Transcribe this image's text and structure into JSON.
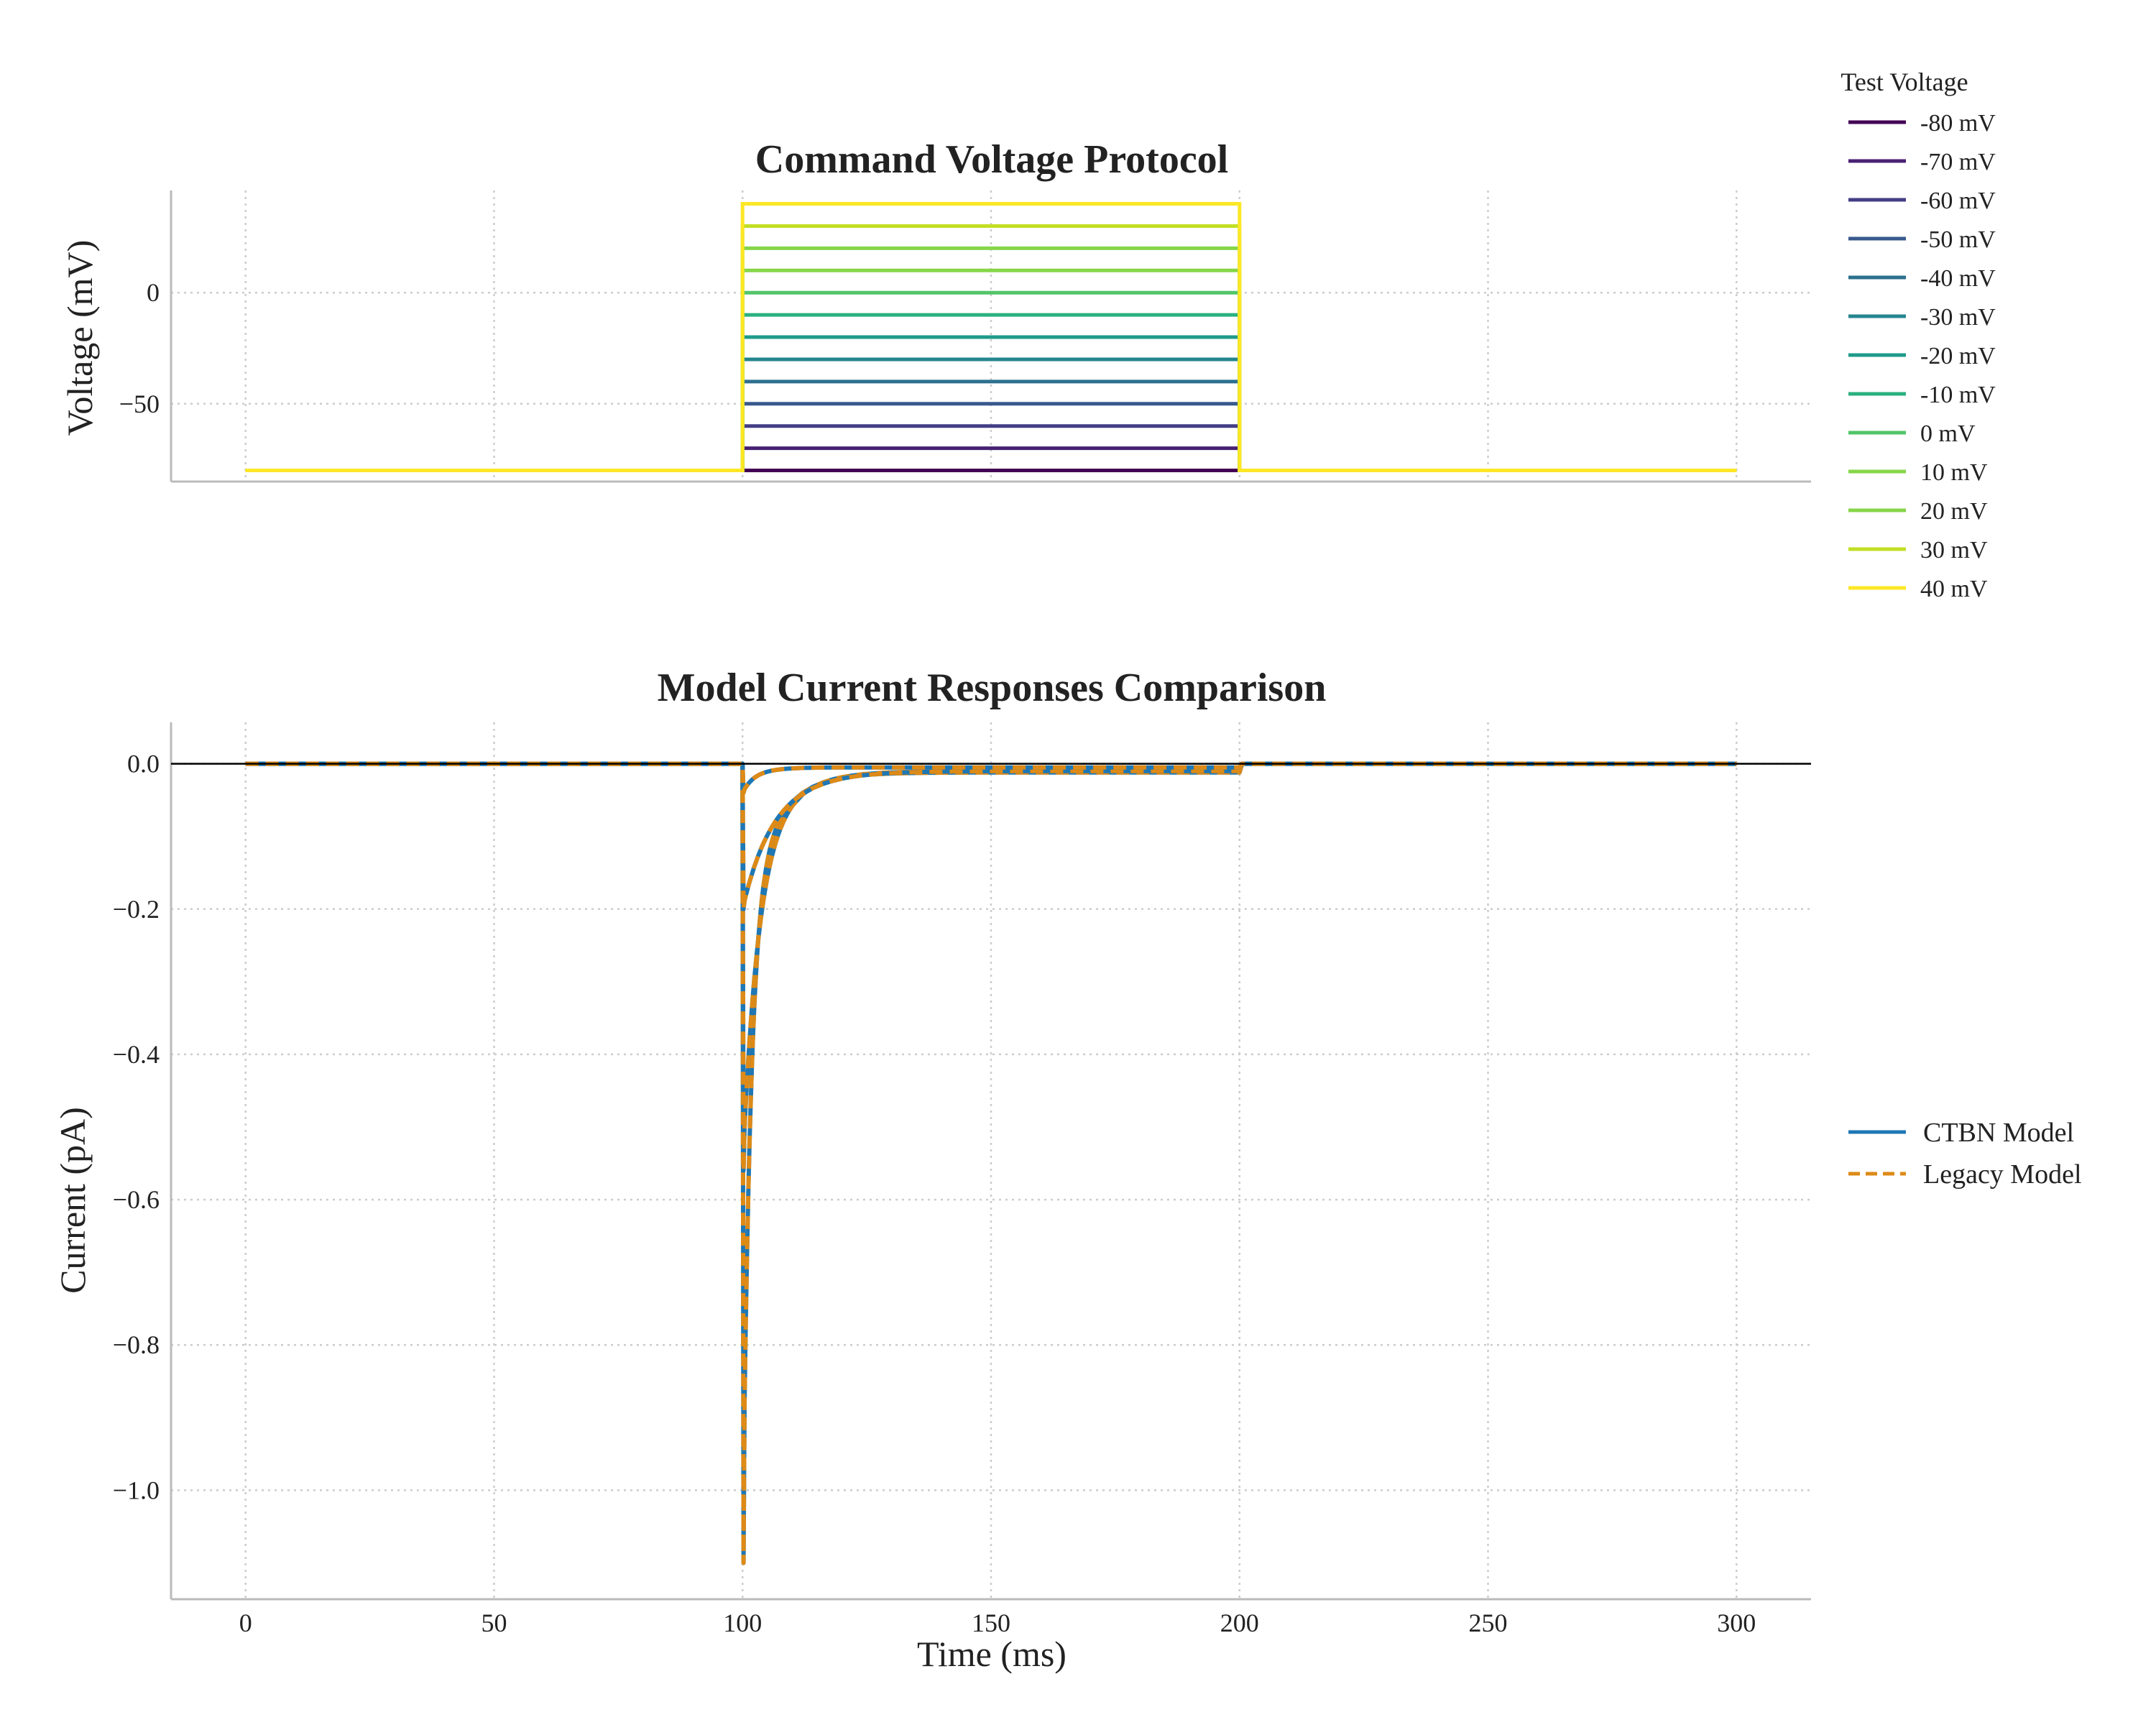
{
  "chart_data": [
    {
      "type": "line",
      "title": "Command Voltage Protocol",
      "xlabel": "",
      "ylabel": "Voltage (mV)",
      "xlim": [
        -15,
        315
      ],
      "ylim": [
        -85,
        46
      ],
      "yticks": [
        0,
        -50
      ],
      "grid": true,
      "legend_title": "Test Voltage",
      "legend_position": "top-right-outside",
      "holding_voltage": -80,
      "step_start": 100,
      "step_end": 200,
      "x_end": 300,
      "series": [
        {
          "name": "-80 mV",
          "value": -80,
          "color": "#440154"
        },
        {
          "name": "-70 mV",
          "value": -70,
          "color": "#482173"
        },
        {
          "name": "-60 mV",
          "value": -60,
          "color": "#433e85"
        },
        {
          "name": "-50 mV",
          "value": -50,
          "color": "#38598c"
        },
        {
          "name": "-40 mV",
          "value": -40,
          "color": "#2d708e"
        },
        {
          "name": "-30 mV",
          "value": -30,
          "color": "#25858e"
        },
        {
          "name": "-20 mV",
          "value": -20,
          "color": "#1e9b8a"
        },
        {
          "name": "-10 mV",
          "value": -10,
          "color": "#2ab07f"
        },
        {
          "name": "0 mV",
          "value": 0,
          "color": "#52c569"
        },
        {
          "name": "10 mV",
          "value": 10,
          "color": "#86d549"
        },
        {
          "name": "20 mV",
          "value": 20,
          "color": "#86d549"
        },
        {
          "name": "30 mV",
          "value": 30,
          "color": "#c2df23"
        },
        {
          "name": "40 mV",
          "value": 40,
          "color": "#fde725"
        }
      ]
    },
    {
      "type": "line",
      "title": "Model Current Responses Comparison",
      "xlabel": "Time (ms)",
      "ylabel": "Current (pA)",
      "xlim": [
        -15,
        315
      ],
      "ylim": [
        -1.15,
        0.057
      ],
      "xticks": [
        0,
        50,
        100,
        150,
        200,
        250,
        300
      ],
      "yticks": [
        0.0,
        -0.2,
        -0.4,
        -0.6,
        -0.8,
        -1.0
      ],
      "ytick_labels": [
        "0.0",
        "−0.2",
        "−0.4",
        "−0.6",
        "−0.8",
        "−1.0"
      ],
      "grid": true,
      "zero_line": true,
      "legend_position": "right-outside",
      "series": [
        {
          "name": "CTBN Model",
          "color": "#1f77b4",
          "style": "solid"
        },
        {
          "name": "Legacy Model",
          "color": "#dd8a17",
          "style": "dashed"
        }
      ],
      "traces": [
        {
          "peak_x": 100,
          "peak": -1.1,
          "tau": 1.5,
          "shoulder": -0.22,
          "tau2": 6,
          "tail_end": -0.012
        },
        {
          "peak_x": 100,
          "peak": -0.56,
          "tau": 3,
          "shoulder": -0.15,
          "tau2": 7,
          "tail_end": -0.01
        },
        {
          "peak_x": 100,
          "peak": -0.2,
          "tau": 5,
          "shoulder": -0.12,
          "tau2": 8,
          "tail_end": -0.01
        },
        {
          "peak_x": 100,
          "peak": -0.04,
          "tau": 2,
          "shoulder": -0.02,
          "tau2": 4,
          "tail_end": -0.005
        }
      ]
    }
  ]
}
